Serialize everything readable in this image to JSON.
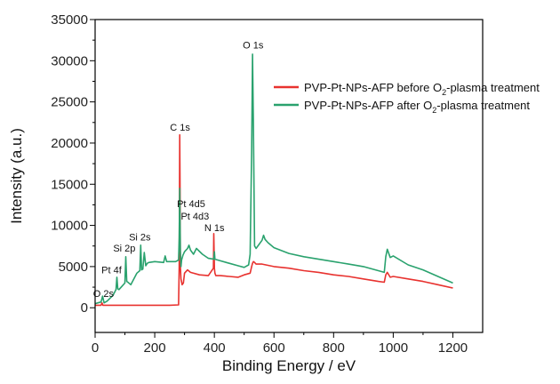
{
  "chart_data": {
    "type": "line",
    "xlabel": "Binding Energy / eV",
    "ylabel": "Intensity (a.u.)",
    "xlim": [
      0,
      1300
    ],
    "ylim": [
      -3000,
      35000
    ],
    "xticks": [
      0,
      200,
      400,
      600,
      800,
      1000,
      1200
    ],
    "yticks": [
      0,
      5000,
      10000,
      15000,
      20000,
      25000,
      30000,
      35000
    ],
    "legend_position": "top-right",
    "series": [
      {
        "name_prefix": "PVP-Pt-NPs-AFP before O",
        "name_sub": "2",
        "name_suffix": "-plasma treatment",
        "color": "#e8322f",
        "x": [
          0,
          20,
          23,
          26,
          40,
          60,
          80,
          100,
          150,
          200,
          250,
          280,
          282,
          284,
          285,
          286,
          288,
          292,
          296,
          300,
          310,
          320,
          350,
          380,
          397,
          398,
          400,
          402,
          405,
          420,
          450,
          480,
          500,
          520,
          525,
          528,
          531,
          535,
          540,
          560,
          600,
          650,
          700,
          750,
          800,
          850,
          900,
          950,
          970,
          975,
          980,
          990,
          1000,
          1050,
          1100,
          1150,
          1200
        ],
        "y": [
          300,
          300,
          600,
          300,
          300,
          300,
          300,
          300,
          300,
          300,
          300,
          350,
          5000,
          21000,
          14000,
          5000,
          3500,
          2800,
          3000,
          4200,
          4600,
          4300,
          4000,
          3900,
          4800,
          9000,
          4800,
          4200,
          3900,
          3900,
          3800,
          3700,
          4000,
          4200,
          5000,
          5400,
          5600,
          5500,
          5300,
          5300,
          5000,
          4800,
          4500,
          4300,
          4000,
          3800,
          3500,
          3200,
          3100,
          4000,
          4300,
          3700,
          3800,
          3500,
          3200,
          2800,
          2400
        ]
      },
      {
        "name_prefix": "PVP-Pt-NPs-AFP after O",
        "name_sub": "2",
        "name_suffix": "-plasma treatment",
        "color": "#2aa26e",
        "x": [
          0,
          20,
          25,
          30,
          40,
          60,
          70,
          73,
          76,
          80,
          90,
          100,
          103,
          106,
          110,
          120,
          130,
          140,
          150,
          153,
          156,
          160,
          165,
          170,
          175,
          180,
          200,
          230,
          235,
          240,
          270,
          280,
          282,
          284,
          286,
          288,
          290,
          295,
          300,
          310,
          315,
          320,
          330,
          340,
          360,
          380,
          398,
          400,
          402,
          420,
          450,
          480,
          500,
          515,
          520,
          525,
          528,
          531,
          535,
          540,
          560,
          565,
          570,
          580,
          600,
          650,
          700,
          750,
          800,
          850,
          900,
          950,
          970,
          975,
          980,
          990,
          1000,
          1050,
          1100,
          1150,
          1200
        ],
        "y": [
          500,
          700,
          1400,
          600,
          800,
          1500,
          2200,
          3700,
          2300,
          2200,
          2600,
          3000,
          6200,
          3200,
          3100,
          2800,
          3500,
          4200,
          4500,
          7600,
          4600,
          4700,
          6700,
          5100,
          5400,
          5500,
          5600,
          5500,
          6300,
          5600,
          5600,
          5800,
          8500,
          14500,
          7000,
          5000,
          5800,
          6400,
          6800,
          7200,
          7600,
          7000,
          6500,
          7200,
          6500,
          6000,
          5900,
          6800,
          5900,
          5700,
          5400,
          5100,
          4900,
          5200,
          6500,
          19000,
          30800,
          22000,
          7500,
          7200,
          8200,
          8800,
          8300,
          7900,
          7300,
          6600,
          6200,
          5900,
          5600,
          5300,
          5000,
          4500,
          4300,
          6200,
          7100,
          6100,
          6300,
          5200,
          4600,
          3800,
          3000
        ]
      }
    ],
    "annotations": [
      {
        "text": "O 1s",
        "x": 530,
        "y": 31500
      },
      {
        "text": "C 1s",
        "x": 285,
        "y": 21500
      },
      {
        "text": "Pt 4d5",
        "x": 322,
        "y": 12200
      },
      {
        "text": "Pt 4d3",
        "x": 335,
        "y": 10700
      },
      {
        "text": "N 1s",
        "x": 400,
        "y": 9300
      },
      {
        "text": "Si 2s",
        "x": 150,
        "y": 8200
      },
      {
        "text": "Si 2p",
        "x": 98,
        "y": 6800
      },
      {
        "text": "Pt 4f",
        "x": 55,
        "y": 4200
      },
      {
        "text": "O 2s",
        "x": 28,
        "y": 1300
      }
    ]
  }
}
